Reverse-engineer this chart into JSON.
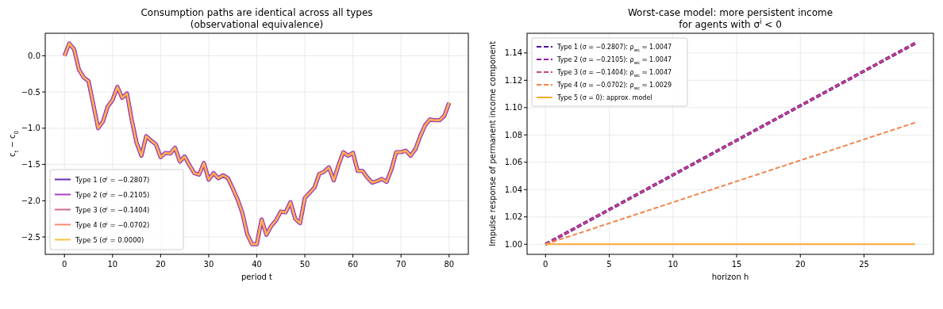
{
  "chart_data": [
    {
      "type": "line",
      "title": "Consumption paths are identical across all types\n(observational equivalence)",
      "xlabel": "period t",
      "ylabel": "c$_{t}$ − c$_{0}$",
      "x": [
        0,
        1,
        2,
        3,
        4,
        5,
        6,
        7,
        8,
        9,
        10,
        11,
        12,
        13,
        14,
        15,
        16,
        17,
        18,
        19,
        20,
        21,
        22,
        23,
        24,
        25,
        26,
        27,
        28,
        29,
        30,
        31,
        32,
        33,
        34,
        35,
        36,
        37,
        38,
        39,
        40,
        41,
        42,
        43,
        44,
        45,
        46,
        47,
        48,
        49,
        50,
        51,
        52,
        53,
        54,
        55,
        56,
        57,
        58,
        59,
        60,
        61,
        62,
        63,
        64,
        65,
        66,
        67,
        68,
        69,
        70,
        71,
        72,
        73,
        74,
        75,
        76,
        77,
        78,
        79,
        80
      ],
      "xlim": [
        -4,
        84
      ],
      "ylim": [
        -2.74,
        0.31
      ],
      "xticks": [
        0,
        10,
        20,
        30,
        40,
        50,
        60,
        70,
        80
      ],
      "yticks": [
        {
          "value": 0,
          "label": "0.0"
        },
        {
          "value": -0.5,
          "label": "−0.5"
        },
        {
          "value": -1,
          "label": "−1.0"
        },
        {
          "value": -1.5,
          "label": "−1.5"
        },
        {
          "value": -2,
          "label": "−2.0"
        },
        {
          "value": -2.5,
          "label": "−2.5"
        }
      ],
      "grid": true,
      "legend": "bottom left",
      "line_style": "solid",
      "series": [
        {
          "name": "Type 1  (σ$^{i}$ = −0.2807)",
          "color": "#6a2cb8",
          "values": [
            0,
            0.17,
            0.09,
            -0.19,
            -0.3,
            -0.35,
            -0.67,
            -1.0,
            -0.91,
            -0.7,
            -0.61,
            -0.43,
            -0.58,
            -0.52,
            -0.89,
            -1.2,
            -1.38,
            -1.11,
            -1.17,
            -1.22,
            -1.4,
            -1.34,
            -1.35,
            -1.27,
            -1.46,
            -1.39,
            -1.51,
            -1.62,
            -1.64,
            -1.48,
            -1.71,
            -1.62,
            -1.69,
            -1.65,
            -1.69,
            -1.83,
            -1.98,
            -2.17,
            -2.46,
            -2.6,
            -2.6,
            -2.26,
            -2.47,
            -2.35,
            -2.27,
            -2.15,
            -2.16,
            -2.02,
            -2.25,
            -2.31,
            -1.96,
            -1.89,
            -1.82,
            -1.63,
            -1.6,
            -1.54,
            -1.72,
            -1.51,
            -1.33,
            -1.38,
            -1.34,
            -1.59,
            -1.59,
            -1.68,
            -1.75,
            -1.73,
            -1.7,
            -1.74,
            -1.57,
            -1.33,
            -1.33,
            -1.31,
            -1.38,
            -1.29,
            -1.11,
            -0.96,
            -0.88,
            -0.89,
            -0.89,
            -0.83,
            -0.65
          ]
        },
        {
          "name": "Type 2  (σ$^{i}$ = −0.2105)",
          "color": "#a93fc4",
          "values": [
            0,
            0.17,
            0.09,
            -0.19,
            -0.3,
            -0.35,
            -0.67,
            -1.0,
            -0.91,
            -0.7,
            -0.61,
            -0.43,
            -0.58,
            -0.52,
            -0.89,
            -1.2,
            -1.38,
            -1.11,
            -1.17,
            -1.22,
            -1.4,
            -1.34,
            -1.35,
            -1.27,
            -1.46,
            -1.39,
            -1.51,
            -1.62,
            -1.64,
            -1.48,
            -1.71,
            -1.62,
            -1.69,
            -1.65,
            -1.69,
            -1.83,
            -1.98,
            -2.17,
            -2.46,
            -2.6,
            -2.6,
            -2.26,
            -2.47,
            -2.35,
            -2.27,
            -2.15,
            -2.16,
            -2.02,
            -2.25,
            -2.31,
            -1.96,
            -1.89,
            -1.82,
            -1.63,
            -1.6,
            -1.54,
            -1.72,
            -1.51,
            -1.33,
            -1.38,
            -1.34,
            -1.59,
            -1.59,
            -1.68,
            -1.75,
            -1.73,
            -1.7,
            -1.74,
            -1.57,
            -1.33,
            -1.33,
            -1.31,
            -1.38,
            -1.29,
            -1.11,
            -0.96,
            -0.88,
            -0.89,
            -0.89,
            -0.83,
            -0.65
          ]
        },
        {
          "name": "Type 3  (σ$^{i}$ = −0.1404)",
          "color": "#d5658f",
          "values": [
            0,
            0.17,
            0.09,
            -0.19,
            -0.3,
            -0.35,
            -0.67,
            -1.0,
            -0.91,
            -0.7,
            -0.61,
            -0.43,
            -0.58,
            -0.52,
            -0.89,
            -1.2,
            -1.38,
            -1.11,
            -1.17,
            -1.22,
            -1.4,
            -1.34,
            -1.35,
            -1.27,
            -1.46,
            -1.39,
            -1.51,
            -1.62,
            -1.64,
            -1.48,
            -1.71,
            -1.62,
            -1.69,
            -1.65,
            -1.69,
            -1.83,
            -1.98,
            -2.17,
            -2.46,
            -2.6,
            -2.6,
            -2.26,
            -2.47,
            -2.35,
            -2.27,
            -2.15,
            -2.16,
            -2.02,
            -2.25,
            -2.31,
            -1.96,
            -1.89,
            -1.82,
            -1.63,
            -1.6,
            -1.54,
            -1.72,
            -1.51,
            -1.33,
            -1.38,
            -1.34,
            -1.59,
            -1.59,
            -1.68,
            -1.75,
            -1.73,
            -1.7,
            -1.74,
            -1.57,
            -1.33,
            -1.33,
            -1.31,
            -1.38,
            -1.29,
            -1.11,
            -0.96,
            -0.88,
            -0.89,
            -0.89,
            -0.83,
            -0.65
          ]
        },
        {
          "name": "Type 4  (σ$^{i}$ = −0.0702)",
          "color": "#f58b6b",
          "values": [
            0,
            0.17,
            0.09,
            -0.19,
            -0.3,
            -0.35,
            -0.67,
            -1.0,
            -0.91,
            -0.7,
            -0.61,
            -0.43,
            -0.58,
            -0.52,
            -0.89,
            -1.2,
            -1.38,
            -1.11,
            -1.17,
            -1.22,
            -1.4,
            -1.34,
            -1.35,
            -1.27,
            -1.46,
            -1.39,
            -1.51,
            -1.62,
            -1.64,
            -1.48,
            -1.71,
            -1.62,
            -1.69,
            -1.65,
            -1.69,
            -1.83,
            -1.98,
            -2.17,
            -2.46,
            -2.6,
            -2.6,
            -2.26,
            -2.47,
            -2.35,
            -2.27,
            -2.15,
            -2.16,
            -2.02,
            -2.25,
            -2.31,
            -1.96,
            -1.89,
            -1.82,
            -1.63,
            -1.6,
            -1.54,
            -1.72,
            -1.51,
            -1.33,
            -1.38,
            -1.34,
            -1.59,
            -1.59,
            -1.68,
            -1.75,
            -1.73,
            -1.7,
            -1.74,
            -1.57,
            -1.33,
            -1.33,
            -1.31,
            -1.38,
            -1.29,
            -1.11,
            -0.96,
            -0.88,
            -0.89,
            -0.89,
            -0.83,
            -0.65
          ]
        },
        {
          "name": "Type 5  (σ$^{i}$ = 0.0000)",
          "color": "#fdbf45",
          "values": [
            0,
            0.17,
            0.09,
            -0.19,
            -0.3,
            -0.35,
            -0.67,
            -1.0,
            -0.91,
            -0.7,
            -0.61,
            -0.43,
            -0.58,
            -0.52,
            -0.89,
            -1.2,
            -1.38,
            -1.11,
            -1.17,
            -1.22,
            -1.4,
            -1.34,
            -1.35,
            -1.27,
            -1.46,
            -1.39,
            -1.51,
            -1.62,
            -1.64,
            -1.48,
            -1.71,
            -1.62,
            -1.69,
            -1.65,
            -1.69,
            -1.83,
            -1.98,
            -2.17,
            -2.46,
            -2.6,
            -2.6,
            -2.26,
            -2.47,
            -2.35,
            -2.27,
            -2.15,
            -2.16,
            -2.02,
            -2.25,
            -2.31,
            -1.96,
            -1.89,
            -1.82,
            -1.63,
            -1.6,
            -1.54,
            -1.72,
            -1.51,
            -1.33,
            -1.38,
            -1.34,
            -1.59,
            -1.59,
            -1.68,
            -1.75,
            -1.73,
            -1.7,
            -1.74,
            -1.57,
            -1.33,
            -1.33,
            -1.31,
            -1.38,
            -1.29,
            -1.11,
            -0.96,
            -0.88,
            -0.89,
            -0.89,
            -0.83,
            -0.65
          ]
        }
      ]
    },
    {
      "type": "line",
      "title": "Worst-case model: more persistent income\nfor agents with σ$^{i}$ < 0",
      "xlabel": "horizon h",
      "ylabel": "Impulse response of permanent income component",
      "x": [
        0,
        29
      ],
      "xlim": [
        -1.45,
        30.45
      ],
      "ylim": [
        0.9926,
        1.1544
      ],
      "xticks": [
        0,
        5,
        10,
        15,
        20,
        25
      ],
      "yticks": [
        {
          "value": 1,
          "label": "1.00"
        },
        {
          "value": 1.02,
          "label": "1.02"
        },
        {
          "value": 1.04,
          "label": "1.04"
        },
        {
          "value": 1.06,
          "label": "1.06"
        },
        {
          "value": 1.08,
          "label": "1.08"
        },
        {
          "value": 1.1,
          "label": "1.10"
        },
        {
          "value": 1.12,
          "label": "1.12"
        },
        {
          "value": 1.14,
          "label": "1.14"
        }
      ],
      "grid": true,
      "legend": "top left",
      "series": [
        {
          "name": "Type 1 (σ = −0.2807): ρ$_{wc}$ ≈ 1.0047",
          "color": "#4b0c9e",
          "line_style": "dashed",
          "values": [
            1,
            1.147
          ]
        },
        {
          "name": "Type 2 (σ = −0.2105): ρ$_{wc}$ ≈ 1.0047",
          "color": "#8e1aa3",
          "line_style": "dashed",
          "values": [
            1,
            1.147
          ]
        },
        {
          "name": "Type 3 (σ = −0.1404): ρ$_{wc}$ ≈ 1.0047",
          "color": "#cc4778",
          "line_style": "dashed",
          "values": [
            1,
            1.147
          ]
        },
        {
          "name": "Type 4 (σ = −0.0702): ρ$_{wc}$ ≈ 1.0029",
          "color": "#f2844b",
          "line_style": "dashed",
          "values": [
            1,
            1.089
          ]
        },
        {
          "name": "Type 5 (σ = 0): approx. model",
          "color": "#fca636",
          "line_style": "solid",
          "values": [
            1,
            1
          ]
        }
      ]
    }
  ]
}
